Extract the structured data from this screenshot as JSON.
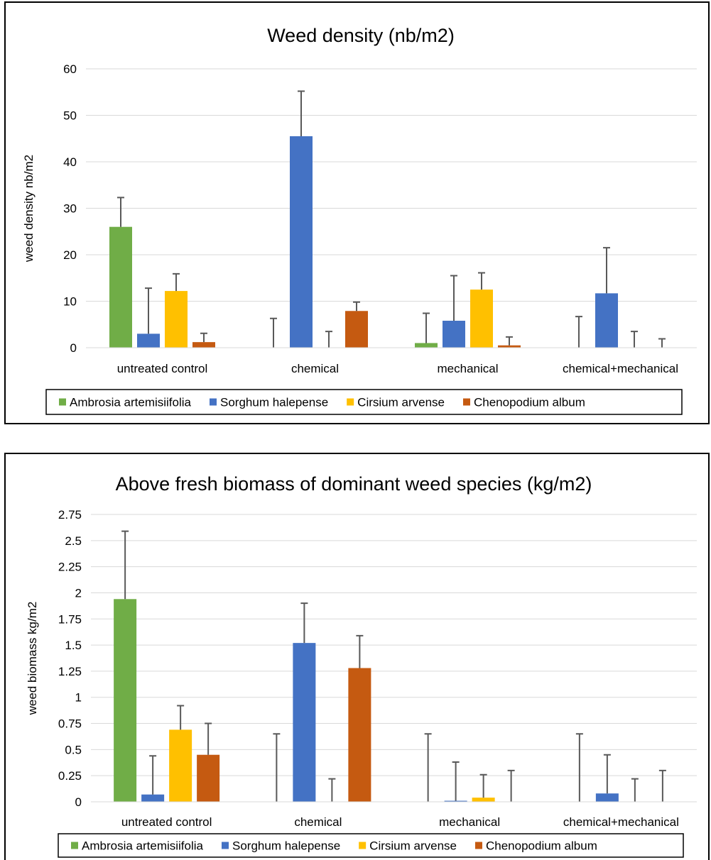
{
  "palette": {
    "Ambrosia artemisiifolia": "#70ad47",
    "Sorghum halepense": "#4472c4",
    "Cirsium arvense": "#ffc000",
    "Chenopodium album": "#c55a11"
  },
  "chart_data": [
    {
      "type": "bar",
      "title": "Weed density (nb/m2)",
      "xlabel": "",
      "ylabel": "weed density nb/m2",
      "categories": [
        "untreated control",
        "chemical",
        "mechanical",
        "chemical+mechanical"
      ],
      "ylim": [
        0,
        60
      ],
      "yticks": [
        0,
        10,
        20,
        30,
        40,
        50,
        60
      ],
      "ytick_labels": [
        "0",
        "10",
        "20",
        "30",
        "40",
        "50",
        "60"
      ],
      "grid": true,
      "legend": "bottom",
      "series": [
        {
          "name": "Ambrosia artemisiifolia",
          "values": [
            26,
            0,
            1,
            0
          ],
          "error": [
            6.3,
            6.3,
            6.4,
            6.7
          ]
        },
        {
          "name": "Sorghum halepense",
          "values": [
            3,
            45.5,
            5.8,
            11.7
          ],
          "error": [
            9.8,
            9.7,
            9.7,
            9.8
          ]
        },
        {
          "name": "Cirsium arvense",
          "values": [
            12.2,
            0,
            12.5,
            0
          ],
          "error": [
            3.7,
            3.5,
            3.6,
            3.5
          ]
        },
        {
          "name": "Chenopodium album",
          "values": [
            1.2,
            7.9,
            0.5,
            0
          ],
          "error": [
            1.9,
            1.9,
            1.8,
            1.9
          ]
        }
      ]
    },
    {
      "type": "bar",
      "title": "Above fresh biomass of dominant weed species (kg/m2)",
      "xlabel": "",
      "ylabel": "weed biomass kg/m2",
      "categories": [
        "untreated control",
        "chemical",
        "mechanical",
        "chemical+mechanical"
      ],
      "ylim": [
        0,
        2.75
      ],
      "yticks": [
        0,
        0.25,
        0.5,
        0.75,
        1,
        1.25,
        1.5,
        1.75,
        2,
        2.25,
        2.5,
        2.75
      ],
      "ytick_labels": [
        "0",
        "0.25",
        "0.5",
        "0.75",
        "1",
        "1.25",
        "1.5",
        "1.75",
        "2",
        "2.25",
        "2.5",
        "2.75"
      ],
      "grid": true,
      "legend": "bottom",
      "series": [
        {
          "name": "Ambrosia artemisiifolia",
          "values": [
            1.94,
            0,
            0,
            0
          ],
          "error": [
            0.65,
            0.65,
            0.65,
            0.65
          ]
        },
        {
          "name": "Sorghum halepense",
          "values": [
            0.07,
            1.52,
            0.01,
            0.08
          ],
          "error": [
            0.37,
            0.38,
            0.37,
            0.37
          ]
        },
        {
          "name": "Cirsium arvense",
          "values": [
            0.69,
            0,
            0.04,
            0
          ],
          "error": [
            0.23,
            0.22,
            0.22,
            0.22
          ]
        },
        {
          "name": "Chenopodium album",
          "values": [
            0.45,
            1.28,
            0,
            0
          ],
          "error": [
            0.3,
            0.31,
            0.3,
            0.3
          ]
        }
      ]
    }
  ]
}
